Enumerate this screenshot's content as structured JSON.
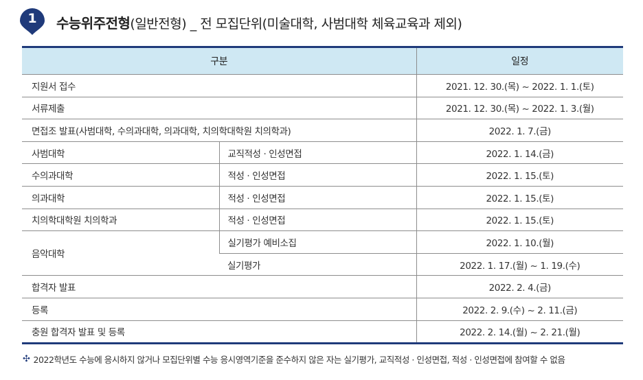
{
  "header": {
    "number": "1",
    "title_strong": "수능위주전형",
    "title_rest": "(일반전형) _ 전 모집단위(미술대학, 사범대학 체육교육과 제외)"
  },
  "table": {
    "headers": [
      "구분",
      "일정"
    ],
    "rows": [
      {
        "label": "지원서 접수",
        "date": "2021. 12. 30.(목) ~ 2022. 1. 1.(토)"
      },
      {
        "label": "서류제출",
        "date": "2021. 12. 30.(목) ~ 2022. 1. 3.(월)"
      },
      {
        "label": "면접조 발표(사범대학, 수의과대학, 의과대학, 치의학대학원 치의학과)",
        "date": "2022. 1. 7.(금)"
      },
      {
        "label": "사범대학",
        "sub": "교직적성 · 인성면접",
        "date": "2022. 1. 14.(금)"
      },
      {
        "label": "수의과대학",
        "sub": "적성 · 인성면접",
        "date": "2022. 1. 15.(토)"
      },
      {
        "label": "의과대학",
        "sub": "적성 · 인성면접",
        "date": "2022. 1. 15.(토)"
      },
      {
        "label": "치의학대학원 치의학과",
        "sub": "적성 · 인성면접",
        "date": "2022. 1. 15.(토)"
      },
      {
        "label": "음악대학",
        "sub": "실기평가 예비소집",
        "date": "2022. 1. 10.(월)"
      },
      {
        "sub": "실기평가",
        "date": "2022. 1. 17.(월) ~ 1. 19.(수)"
      },
      {
        "label": "합격자 발표",
        "date": "2022. 2. 4.(금)"
      },
      {
        "label": "등록",
        "date": "2022. 2. 9.(수) ~ 2. 11.(금)"
      },
      {
        "label": "충원 합격자 발표 및 등록",
        "date": "2022. 2. 14.(월) ~ 2. 21.(월)"
      }
    ]
  },
  "footnote": {
    "mark": "✣",
    "text": "2022학년도 수능에 응시하지 않거나 모집단위별 수능 응시영역기준을 준수하지 않은 자는 실기평가, 교직적성 · 인성면접, 적성 · 인성면접에 참여할 수 없음"
  },
  "colors": {
    "accent": "#1f3a7a",
    "header_bg": "#cfe8f3",
    "badge": "#1f3a7a"
  }
}
